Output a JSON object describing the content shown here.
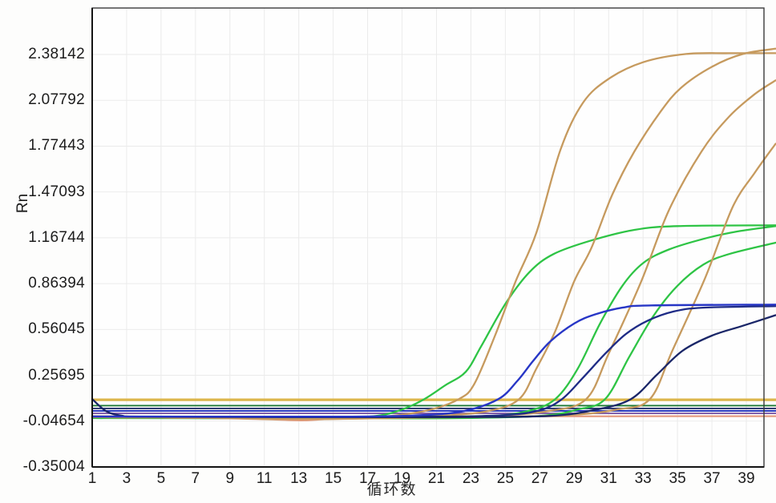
{
  "chart_data": {
    "type": "line",
    "title": "",
    "xlabel": "循环数",
    "ylabel": "Rn",
    "x_ticks": [
      1,
      3,
      5,
      7,
      9,
      11,
      13,
      15,
      17,
      19,
      21,
      23,
      25,
      27,
      29,
      31,
      33,
      35,
      37,
      39
    ],
    "y_ticks": [
      "2.38142",
      "2.07792",
      "1.77443",
      "1.47093",
      "1.16744",
      "0.86394",
      "0.56045",
      "0.25695",
      "-0.04654",
      "-0.35004"
    ],
    "xlim": [
      1,
      40.7
    ],
    "ylim": [
      -0.35004,
      2.6907
    ],
    "grid": {
      "show": true,
      "color": "#ebebeb",
      "vertical_every_cycles": 2
    },
    "legend": "none",
    "background": "#fefefe",
    "threshold_lines": [
      {
        "name": "threshold-orange",
        "color": "#DCB64B",
        "value": 0.095,
        "width": 3.2
      },
      {
        "name": "threshold-green",
        "color": "#1E7A35",
        "value": 0.056,
        "width": 1.8
      },
      {
        "name": "threshold-navy",
        "color": "#15215F",
        "value": 0.037,
        "width": 1.8
      },
      {
        "name": "threshold-blue",
        "color": "#2A3BBE",
        "value": 0.021,
        "width": 2.0
      },
      {
        "name": "threshold-purple",
        "color": "#7A55A5",
        "value": 0.005,
        "width": 1.8
      }
    ],
    "series": [
      {
        "name": "salmon-baseline",
        "color": "#E59B80",
        "width": 2.2,
        "points": [
          [
            1,
            -0.013
          ],
          [
            4,
            -0.017
          ],
          [
            8,
            -0.026
          ],
          [
            11,
            -0.034
          ],
          [
            13.2,
            -0.042
          ],
          [
            14.5,
            -0.034
          ],
          [
            16,
            -0.025
          ],
          [
            18,
            -0.019
          ],
          [
            22,
            -0.016
          ],
          [
            28,
            -0.015
          ],
          [
            34,
            -0.014
          ],
          [
            40.7,
            -0.014
          ]
        ]
      },
      {
        "name": "green-1",
        "color": "#2EC445",
        "width": 2.3,
        "points": [
          [
            1,
            -0.026
          ],
          [
            10,
            -0.027
          ],
          [
            15,
            -0.027
          ],
          [
            17.5,
            -0.012
          ],
          [
            19,
            0.03
          ],
          [
            20.3,
            0.1
          ],
          [
            21.5,
            0.19
          ],
          [
            22.7,
            0.28
          ],
          [
            23.6,
            0.45
          ],
          [
            25,
            0.73
          ],
          [
            26.4,
            0.94
          ],
          [
            27.8,
            1.06
          ],
          [
            30,
            1.15
          ],
          [
            32.5,
            1.22
          ],
          [
            35,
            1.245
          ],
          [
            40.7,
            1.25
          ]
        ]
      },
      {
        "name": "green-2",
        "color": "#2EC445",
        "width": 2.3,
        "points": [
          [
            1,
            -0.026
          ],
          [
            12,
            -0.027
          ],
          [
            20,
            -0.027
          ],
          [
            24,
            -0.015
          ],
          [
            26.3,
            0.02
          ],
          [
            27.9,
            0.1
          ],
          [
            29.2,
            0.3
          ],
          [
            30.5,
            0.6
          ],
          [
            31.8,
            0.85
          ],
          [
            33,
            1.0
          ],
          [
            34.5,
            1.09
          ],
          [
            36.5,
            1.16
          ],
          [
            38.5,
            1.21
          ],
          [
            40.7,
            1.245
          ]
        ]
      },
      {
        "name": "green-3",
        "color": "#2EC445",
        "width": 2.3,
        "points": [
          [
            1,
            -0.026
          ],
          [
            15,
            -0.027
          ],
          [
            22,
            -0.027
          ],
          [
            27,
            -0.012
          ],
          [
            29.2,
            0.03
          ],
          [
            30.8,
            0.1
          ],
          [
            32.2,
            0.38
          ],
          [
            33.6,
            0.65
          ],
          [
            35,
            0.85
          ],
          [
            36.5,
            0.99
          ],
          [
            38,
            1.06
          ],
          [
            40.7,
            1.135
          ]
        ]
      },
      {
        "name": "orange-1",
        "color": "#C69A5E",
        "width": 2.3,
        "points": [
          [
            1,
            -0.02
          ],
          [
            8,
            -0.026
          ],
          [
            13,
            -0.034
          ],
          [
            15.5,
            -0.028
          ],
          [
            18,
            -0.016
          ],
          [
            20.5,
            0.025
          ],
          [
            22.3,
            0.1
          ],
          [
            23.2,
            0.2
          ],
          [
            24.4,
            0.52
          ],
          [
            25.6,
            0.88
          ],
          [
            26.8,
            1.2
          ],
          [
            28.2,
            1.75
          ],
          [
            29.5,
            2.06
          ],
          [
            31,
            2.22
          ],
          [
            33,
            2.33
          ],
          [
            35.5,
            2.385
          ],
          [
            38,
            2.39
          ],
          [
            40.7,
            2.39
          ]
        ]
      },
      {
        "name": "orange-2",
        "color": "#C69A5E",
        "width": 2.3,
        "points": [
          [
            1,
            -0.02
          ],
          [
            8,
            -0.026
          ],
          [
            13,
            -0.034
          ],
          [
            17,
            -0.026
          ],
          [
            21,
            -0.012
          ],
          [
            24,
            0.02
          ],
          [
            25.8,
            0.1
          ],
          [
            26.8,
            0.3
          ],
          [
            27.9,
            0.55
          ],
          [
            29,
            0.88
          ],
          [
            30,
            1.1
          ],
          [
            31.2,
            1.45
          ],
          [
            32.5,
            1.74
          ],
          [
            34,
            2.0
          ],
          [
            35.2,
            2.16
          ],
          [
            37,
            2.3
          ],
          [
            38.8,
            2.385
          ],
          [
            40.7,
            2.42
          ]
        ]
      },
      {
        "name": "orange-3",
        "color": "#C69A5E",
        "width": 2.3,
        "points": [
          [
            1,
            -0.02
          ],
          [
            8,
            -0.026
          ],
          [
            13,
            -0.034
          ],
          [
            18,
            -0.026
          ],
          [
            24,
            -0.012
          ],
          [
            27.5,
            0.02
          ],
          [
            29.7,
            0.1
          ],
          [
            31,
            0.4
          ],
          [
            32.9,
            0.88
          ],
          [
            34.5,
            1.35
          ],
          [
            36.4,
            1.74
          ],
          [
            38,
            1.97
          ],
          [
            39.5,
            2.12
          ],
          [
            40.7,
            2.21
          ]
        ]
      },
      {
        "name": "orange-4",
        "color": "#C69A5E",
        "width": 2.3,
        "points": [
          [
            1,
            -0.02
          ],
          [
            8,
            -0.026
          ],
          [
            13,
            -0.034
          ],
          [
            20,
            -0.024
          ],
          [
            28,
            -0.01
          ],
          [
            31.5,
            0.03
          ],
          [
            33.4,
            0.1
          ],
          [
            34.7,
            0.42
          ],
          [
            36.6,
            0.9
          ],
          [
            38.2,
            1.37
          ],
          [
            39.5,
            1.6
          ],
          [
            40.7,
            1.79
          ]
        ]
      },
      {
        "name": "blue-2",
        "color": "#1E2B86",
        "width": 2.3,
        "points": [
          [
            1,
            -0.016
          ],
          [
            14,
            -0.017
          ],
          [
            21,
            -0.017
          ],
          [
            25,
            -0.006
          ],
          [
            27,
            0.025
          ],
          [
            28.3,
            0.1
          ],
          [
            29.5,
            0.24
          ],
          [
            30.8,
            0.4
          ],
          [
            32,
            0.53
          ],
          [
            33.3,
            0.62
          ],
          [
            34.8,
            0.68
          ],
          [
            36.5,
            0.705
          ],
          [
            40.7,
            0.715
          ]
        ]
      },
      {
        "name": "blue-3",
        "color": "#1A2668",
        "width": 2.3,
        "points": [
          [
            1,
            0.1
          ],
          [
            1.8,
            0.02
          ],
          [
            2.7,
            -0.01
          ],
          [
            4,
            -0.018
          ],
          [
            12,
            -0.02
          ],
          [
            22,
            -0.02
          ],
          [
            27.5,
            -0.012
          ],
          [
            30.3,
            0.03
          ],
          [
            32.3,
            0.1
          ],
          [
            33.8,
            0.26
          ],
          [
            35.3,
            0.42
          ],
          [
            37,
            0.52
          ],
          [
            38.8,
            0.585
          ],
          [
            40.7,
            0.655
          ]
        ]
      },
      {
        "name": "blue-1",
        "color": "#2736C6",
        "width": 2.4,
        "points": [
          [
            1,
            -0.016
          ],
          [
            10,
            -0.017
          ],
          [
            16,
            -0.017
          ],
          [
            20,
            -0.008
          ],
          [
            22.6,
            0.02
          ],
          [
            24.6,
            0.1
          ],
          [
            25.7,
            0.22
          ],
          [
            26.6,
            0.35
          ],
          [
            27.6,
            0.48
          ],
          [
            29,
            0.6
          ],
          [
            30.2,
            0.66
          ],
          [
            31.8,
            0.705
          ],
          [
            33.5,
            0.72
          ],
          [
            40.7,
            0.725
          ]
        ]
      }
    ]
  }
}
